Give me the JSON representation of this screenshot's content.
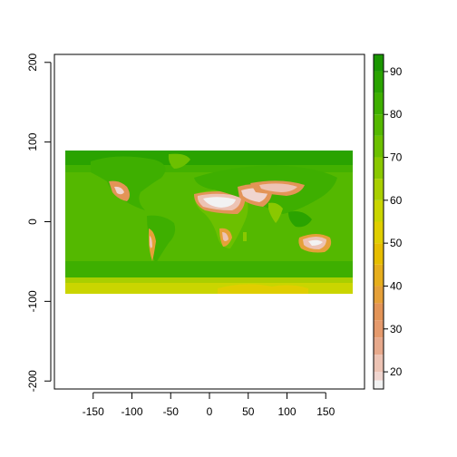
{
  "chart_data": {
    "type": "heatmap",
    "title": "",
    "xlabel": "",
    "ylabel": "",
    "xlim": [
      -200,
      200
    ],
    "ylim": [
      -210,
      210
    ],
    "x_ticks": [
      -150,
      -100,
      -50,
      0,
      50,
      100,
      150
    ],
    "y_ticks": [
      -200,
      -100,
      0,
      100,
      200
    ],
    "raster_extent": {
      "x": [
        -180,
        180
      ],
      "y": [
        -90,
        90
      ]
    },
    "legend": {
      "position": "right",
      "ticks": [
        20,
        30,
        40,
        50,
        60,
        70,
        80,
        90
      ],
      "range": [
        16,
        94
      ],
      "breaks": [
        16,
        18,
        20,
        24,
        28,
        32,
        36,
        40,
        45,
        50,
        55,
        60,
        65,
        70,
        75,
        80,
        85,
        90,
        94
      ],
      "colors": [
        "#f2f2f2",
        "#f0d5cf",
        "#edc3b4",
        "#e7a98c",
        "#e59a6d",
        "#e39457",
        "#e5a039",
        "#e6ae1d",
        "#e6bd00",
        "#e0ce00",
        "#cad500",
        "#a9cf00",
        "#8ac800",
        "#6cc000",
        "#54b800",
        "#3eaf00",
        "#2aa300",
        "#1a9600"
      ]
    },
    "regions": [
      {
        "name": "ocean-background",
        "value": 74
      },
      {
        "name": "high-latitude-north-band",
        "value": 82
      },
      {
        "name": "polar-south-strip",
        "value": 55
      },
      {
        "name": "sahara-arabia",
        "value": 18
      },
      {
        "name": "central-asia",
        "value": 25
      },
      {
        "name": "australia-interior",
        "value": 22
      },
      {
        "name": "southern-africa",
        "value": 30
      },
      {
        "name": "sw-north-america",
        "value": 35
      },
      {
        "name": "south-america-west",
        "value": 40
      },
      {
        "name": "india",
        "value": 45
      }
    ]
  }
}
